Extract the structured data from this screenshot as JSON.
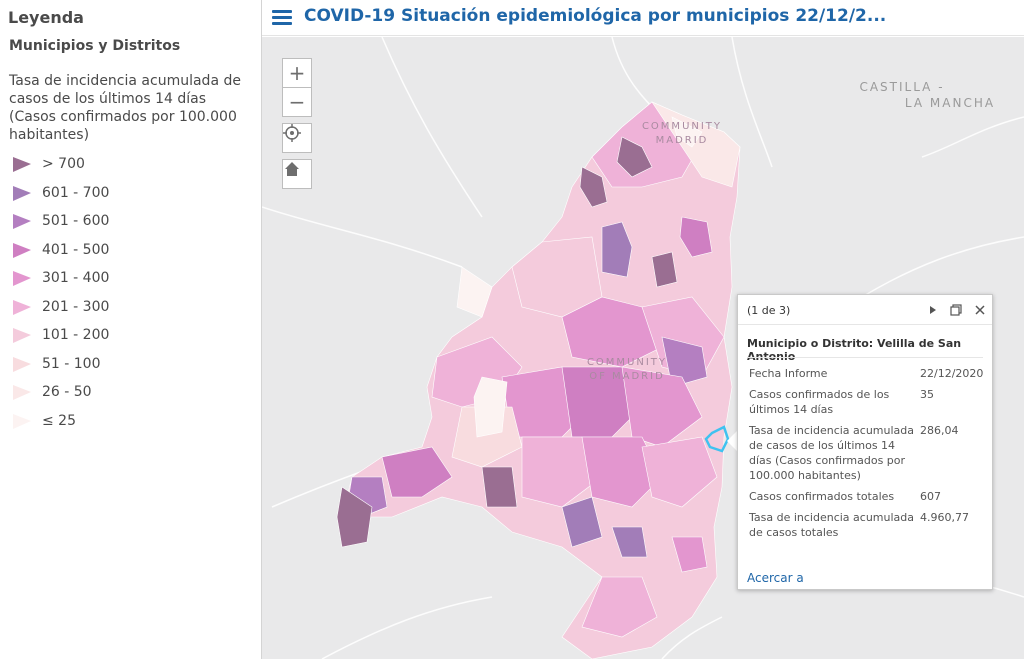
{
  "legend": {
    "title": "Leyenda",
    "layer_name": "Municipios y Distritos",
    "field_title": "Tasa de incidencia acumulada de casos de los últimos 14 días (Casos confirmados por 100.000 habitantes)",
    "classes": [
      {
        "label": "> 700",
        "color": "#9a6e92"
      },
      {
        "label": "601 - 700",
        "color": "#a27db8"
      },
      {
        "label": "501 - 600",
        "color": "#b47fc1"
      },
      {
        "label": "401 - 500",
        "color": "#cf7fc2"
      },
      {
        "label": "301 - 400",
        "color": "#e396cf"
      },
      {
        "label": "201 - 300",
        "color": "#efb2d8"
      },
      {
        "label": "101 - 200",
        "color": "#f4cbdc"
      },
      {
        "label": "51 - 100",
        "color": "#f8dcdf"
      },
      {
        "label": "26 - 50",
        "color": "#fae8e8"
      },
      {
        "label": "≤ 25",
        "color": "#fcf3f2"
      }
    ]
  },
  "header": {
    "title": "COVID-19 Situación epidemiológica por municipios 22/12/2...",
    "menu_icon": "hamburger-menu-icon"
  },
  "map": {
    "labels": {
      "region_ne_line1": "CASTILLA -",
      "region_ne_line2": "LA MANCHA",
      "north_line1": "COMMUNITY",
      "north_line2": "MADRID",
      "center_line1": "COMMUNITY",
      "center_line2": "OF MADRID"
    },
    "controls": {
      "zoom_in": "+",
      "zoom_out": "−",
      "locate_icon": "locate-crosshair-icon",
      "home_icon": "home-icon"
    },
    "background_color": "#e9e9ea",
    "highlight_color": "#3fc2f0"
  },
  "popup": {
    "count": "(1 de 3)",
    "heading": "Municipio o Distrito: Velilla de San Antonio",
    "rows": [
      {
        "label": "Fecha Informe",
        "value": "22/12/2020"
      },
      {
        "label": "Casos confirmados de los últimos 14 días",
        "value": "35"
      },
      {
        "label": "Tasa de incidencia acumulada de casos de los últimos 14 días (Casos confirmados por 100.000 habitantes)",
        "value": "286,04"
      },
      {
        "label": "Casos confirmados totales",
        "value": "607"
      },
      {
        "label": "Tasa de incidencia acumulada de casos totales",
        "value": "4.960,77"
      }
    ],
    "zoom_link": "Acercar a",
    "icons": {
      "next": "play-next-icon",
      "dock": "dock-window-icon",
      "close": "close-icon"
    }
  }
}
